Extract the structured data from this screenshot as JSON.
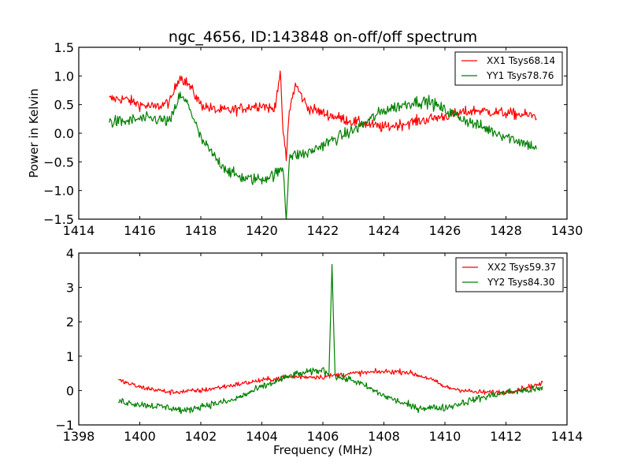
{
  "chart_data": [
    {
      "type": "line",
      "title": "ngc_4656, ID:143848 on-off/off spectrum",
      "xlabel": "",
      "ylabel": "Power in Kelvin",
      "xlim": [
        1414,
        1430
      ],
      "ylim": [
        -1.5,
        1.5
      ],
      "xticks": [
        "1414",
        "1416",
        "1418",
        "1420",
        "1422",
        "1424",
        "1426",
        "1428",
        "1430"
      ],
      "xtick_values": [
        1414,
        1416,
        1418,
        1420,
        1422,
        1424,
        1426,
        1428,
        1430
      ],
      "yticks": [
        "1.5",
        "1.0",
        "0.5",
        "0.0",
        "−0.5",
        "−1.0",
        "−1.5"
      ],
      "ytick_values": [
        1.5,
        1.0,
        0.5,
        0.0,
        -0.5,
        -1.0,
        -1.5
      ],
      "legend_position": "upper-right",
      "grid": false,
      "series": [
        {
          "name": "XX1 Tsys68.14",
          "color": "#ff0000",
          "noise": 0.09,
          "x": [
            1415.0,
            1415.5,
            1416.0,
            1416.5,
            1417.0,
            1417.3,
            1417.6,
            1418.0,
            1418.5,
            1419.0,
            1419.5,
            1420.0,
            1420.4,
            1420.6,
            1420.7,
            1420.8,
            1420.9,
            1421.1,
            1421.5,
            1422.0,
            1423.0,
            1424.0,
            1425.0,
            1426.0,
            1427.0,
            1428.0,
            1429.0
          ],
          "y": [
            0.6,
            0.6,
            0.5,
            0.45,
            0.55,
            1.0,
            0.85,
            0.5,
            0.4,
            0.4,
            0.45,
            0.5,
            0.4,
            1.05,
            0.0,
            -0.45,
            0.4,
            0.85,
            0.45,
            0.35,
            0.2,
            0.1,
            0.2,
            0.3,
            0.4,
            0.35,
            0.3
          ]
        },
        {
          "name": "YY1 Tsys78.76",
          "color": "#008000",
          "noise": 0.1,
          "x": [
            1415.0,
            1415.5,
            1416.0,
            1416.5,
            1417.0,
            1417.3,
            1417.6,
            1418.0,
            1418.5,
            1419.0,
            1419.5,
            1420.0,
            1420.5,
            1420.7,
            1420.8,
            1420.9,
            1421.5,
            1422.0,
            1423.0,
            1424.0,
            1425.0,
            1425.5,
            1426.0,
            1427.0,
            1428.0,
            1429.0
          ],
          "y": [
            0.2,
            0.2,
            0.25,
            0.25,
            0.2,
            0.65,
            0.5,
            -0.1,
            -0.45,
            -0.7,
            -0.8,
            -0.8,
            -0.7,
            -0.6,
            -1.5,
            -0.4,
            -0.35,
            -0.2,
            0.05,
            0.4,
            0.55,
            0.55,
            0.4,
            0.15,
            -0.05,
            -0.25
          ]
        }
      ]
    },
    {
      "type": "line",
      "title": "",
      "xlabel": "Frequency (MHz)",
      "ylabel": "",
      "xlim": [
        1398,
        1414
      ],
      "ylim": [
        -1,
        4
      ],
      "xticks": [
        "1398",
        "1400",
        "1402",
        "1404",
        "1406",
        "1408",
        "1410",
        "1412",
        "1414"
      ],
      "xtick_values": [
        1398,
        1400,
        1402,
        1404,
        1406,
        1408,
        1410,
        1412,
        1414
      ],
      "yticks": [
        "4",
        "3",
        "2",
        "1",
        "0",
        "−1"
      ],
      "ytick_values": [
        4,
        3,
        2,
        1,
        0,
        -1
      ],
      "legend_position": "upper-right",
      "grid": false,
      "series": [
        {
          "name": "XX2 Tsys59.37",
          "color": "#ff0000",
          "noise": 0.07,
          "x": [
            1399.3,
            1400.0,
            1401.0,
            1402.0,
            1403.0,
            1404.0,
            1405.0,
            1406.0,
            1407.0,
            1408.0,
            1408.7,
            1409.5,
            1410.0,
            1411.0,
            1412.0,
            1413.2
          ],
          "y": [
            0.3,
            0.1,
            -0.05,
            0.0,
            0.15,
            0.3,
            0.4,
            0.4,
            0.5,
            0.55,
            0.55,
            0.35,
            0.1,
            -0.05,
            -0.05,
            0.2
          ]
        },
        {
          "name": "YY2 Tsys84.30",
          "color": "#008000",
          "noise": 0.1,
          "x": [
            1399.3,
            1400.0,
            1401.0,
            1401.5,
            1402.0,
            1403.0,
            1404.0,
            1405.0,
            1406.0,
            1406.2,
            1406.3,
            1406.4,
            1407.0,
            1408.0,
            1409.0,
            1410.0,
            1411.0,
            1412.0,
            1413.2
          ],
          "y": [
            -0.3,
            -0.4,
            -0.5,
            -0.6,
            -0.45,
            -0.3,
            0.1,
            0.45,
            0.6,
            0.5,
            3.7,
            0.4,
            0.3,
            -0.15,
            -0.5,
            -0.5,
            -0.25,
            -0.05,
            0.05
          ]
        }
      ]
    }
  ]
}
